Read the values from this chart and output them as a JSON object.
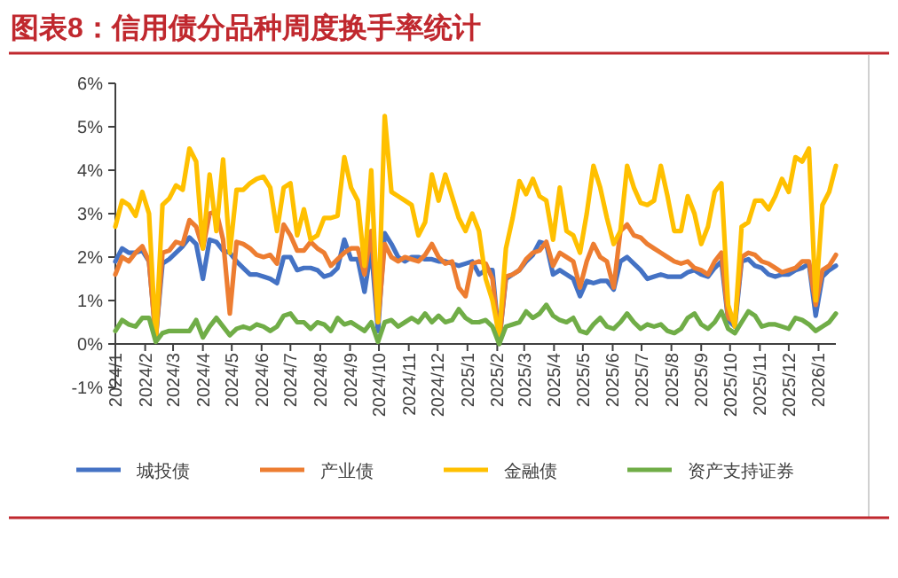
{
  "chart_data": {
    "type": "line",
    "title": "图表8：信用债分品种周度换手率统计",
    "x": [
      "2024-01-01",
      "2024-01-08",
      "2024-01-15",
      "2024-01-22",
      "2024-01-29",
      "2024-02-05",
      "2024-02-12",
      "2024-02-19",
      "2024-02-26",
      "2024-03-04",
      "2024-03-11",
      "2024-03-18",
      "2024-03-25",
      "2024-04-01",
      "2024-04-08",
      "2024-04-15",
      "2024-04-22",
      "2024-04-29",
      "2024-05-06",
      "2024-05-13",
      "2024-05-20",
      "2024-05-27",
      "2024-06-03",
      "2024-06-10",
      "2024-06-17",
      "2024-06-24",
      "2024-07-01",
      "2024-07-08",
      "2024-07-15",
      "2024-07-22",
      "2024-07-29",
      "2024-08-05",
      "2024-08-12",
      "2024-08-19",
      "2024-08-26",
      "2024-09-02",
      "2024-09-09",
      "2024-09-16",
      "2024-09-23",
      "2024-09-30",
      "2024-10-07",
      "2024-10-14",
      "2024-10-21",
      "2024-10-28",
      "2024-11-04",
      "2024-11-11",
      "2024-11-18",
      "2024-11-25",
      "2024-12-02",
      "2024-12-09",
      "2024-12-16",
      "2024-12-23",
      "2024-12-30",
      "2025-01-06",
      "2025-01-13",
      "2025-01-20",
      "2025-01-27",
      "2025-02-03",
      "2025-02-10",
      "2025-02-17",
      "2025-02-24",
      "2025-03-03",
      "2025-03-10",
      "2025-03-17",
      "2025-03-24",
      "2025-03-31",
      "2025-04-07",
      "2025-04-14",
      "2025-04-21",
      "2025-04-28",
      "2025-05-05",
      "2025-05-12",
      "2025-05-19",
      "2025-05-26",
      "2025-06-02",
      "2025-06-09",
      "2025-06-16",
      "2025-06-23",
      "2025-06-30",
      "2025-07-07",
      "2025-07-14",
      "2025-07-21",
      "2025-07-28",
      "2025-08-04",
      "2025-08-11",
      "2025-08-18",
      "2025-08-25",
      "2025-09-01",
      "2025-09-08",
      "2025-09-15",
      "2025-09-22",
      "2025-09-29",
      "2025-10-06",
      "2025-10-13",
      "2025-10-20",
      "2025-10-27",
      "2025-11-03",
      "2025-11-10",
      "2025-11-17",
      "2025-11-24",
      "2025-12-01",
      "2025-12-08",
      "2025-12-15",
      "2025-12-22",
      "2025-12-29",
      "2026-01-05",
      "2026-01-12",
      "2026-01-19"
    ],
    "xlim": [
      "2024-01-01",
      "2026-01-19"
    ],
    "xticks": [
      {
        "value": "2024-01-01",
        "label": "2024/1"
      },
      {
        "value": "2024-02-01",
        "label": "2024/2"
      },
      {
        "value": "2024-03-01",
        "label": "2024/3"
      },
      {
        "value": "2024-04-01",
        "label": "2024/4"
      },
      {
        "value": "2024-05-01",
        "label": "2024/5"
      },
      {
        "value": "2024-06-01",
        "label": "2024/6"
      },
      {
        "value": "2024-07-01",
        "label": "2024/7"
      },
      {
        "value": "2024-08-01",
        "label": "2024/8"
      },
      {
        "value": "2024-09-01",
        "label": "2024/9"
      },
      {
        "value": "2024-10-01",
        "label": "2024/10"
      },
      {
        "value": "2024-11-01",
        "label": "2024/11"
      },
      {
        "value": "2024-12-01",
        "label": "2024/12"
      },
      {
        "value": "2025-01-01",
        "label": "2025/1"
      },
      {
        "value": "2025-02-01",
        "label": "2025/2"
      },
      {
        "value": "2025-03-01",
        "label": "2025/3"
      },
      {
        "value": "2025-04-01",
        "label": "2025/4"
      },
      {
        "value": "2025-05-01",
        "label": "2025/5"
      },
      {
        "value": "2025-06-01",
        "label": "2025/6"
      },
      {
        "value": "2025-07-01",
        "label": "2025/7"
      },
      {
        "value": "2025-08-01",
        "label": "2025/8"
      },
      {
        "value": "2025-09-01",
        "label": "2025/9"
      },
      {
        "value": "2025-10-01",
        "label": "2025/10"
      },
      {
        "value": "2025-11-01",
        "label": "2025/11"
      },
      {
        "value": "2025-12-01",
        "label": "2025/12"
      },
      {
        "value": "2026-01-01",
        "label": "2026/1"
      }
    ],
    "ylim": [
      -1,
      6
    ],
    "yticks": [
      {
        "value": -1,
        "label": "-1%"
      },
      {
        "value": 0,
        "label": "0%"
      },
      {
        "value": 1,
        "label": "1%"
      },
      {
        "value": 2,
        "label": "2%"
      },
      {
        "value": 3,
        "label": "3%"
      },
      {
        "value": 4,
        "label": "4%"
      },
      {
        "value": 5,
        "label": "5%"
      },
      {
        "value": 6,
        "label": "6%"
      }
    ],
    "legend": "bottom",
    "series": [
      {
        "name": "城投债",
        "color": "#4472c4",
        "values": [
          1.9,
          2.2,
          2.1,
          2.1,
          2.15,
          1.9,
          0.15,
          1.85,
          1.95,
          2.1,
          2.25,
          2.45,
          2.3,
          1.5,
          2.4,
          2.35,
          2.15,
          2.1,
          1.9,
          1.75,
          1.6,
          1.6,
          1.55,
          1.5,
          1.4,
          2.0,
          2.0,
          1.7,
          1.75,
          1.75,
          1.7,
          1.55,
          1.6,
          1.75,
          2.4,
          1.95,
          1.95,
          1.2,
          2.2,
          0.3,
          2.55,
          2.3,
          2.0,
          1.9,
          2.0,
          2.0,
          1.95,
          1.95,
          1.9,
          1.9,
          1.85,
          1.8,
          1.85,
          1.9,
          1.6,
          1.7,
          1.7,
          0.05,
          1.5,
          1.6,
          1.7,
          1.9,
          2.05,
          2.35,
          2.3,
          1.6,
          1.7,
          1.6,
          1.5,
          1.1,
          1.45,
          1.4,
          1.45,
          1.45,
          1.25,
          1.9,
          2.0,
          1.85,
          1.7,
          1.5,
          1.55,
          1.6,
          1.55,
          1.55,
          1.55,
          1.65,
          1.7,
          1.6,
          1.55,
          1.75,
          1.9,
          0.55,
          0.4,
          1.9,
          1.95,
          1.8,
          1.75,
          1.6,
          1.55,
          1.6,
          1.6,
          1.7,
          1.75,
          1.85,
          0.65,
          1.55,
          1.7,
          1.8
        ]
      },
      {
        "name": "产业债",
        "color": "#ed7d31",
        "values": [
          1.6,
          2.0,
          1.9,
          2.1,
          2.25,
          1.9,
          0.1,
          2.1,
          2.15,
          2.35,
          2.3,
          2.85,
          2.7,
          2.2,
          3.0,
          3.05,
          2.4,
          0.7,
          2.35,
          2.3,
          2.2,
          2.05,
          2.0,
          2.05,
          1.85,
          2.75,
          2.5,
          2.15,
          2.15,
          2.35,
          2.2,
          2.1,
          1.8,
          1.95,
          2.1,
          2.2,
          2.2,
          1.6,
          2.6,
          0.5,
          2.3,
          2.0,
          1.9,
          2.0,
          1.95,
          1.9,
          2.05,
          2.3,
          2.0,
          1.85,
          1.9,
          1.3,
          1.1,
          1.85,
          1.9,
          1.85,
          1.5,
          0.05,
          1.55,
          1.6,
          1.7,
          1.95,
          2.1,
          2.15,
          2.35,
          1.8,
          2.1,
          2.0,
          1.9,
          1.3,
          1.9,
          2.3,
          2.0,
          1.9,
          1.3,
          2.6,
          2.75,
          2.5,
          2.45,
          2.3,
          2.2,
          2.1,
          2.0,
          1.9,
          1.85,
          1.9,
          1.75,
          1.7,
          1.6,
          1.9,
          2.1,
          0.6,
          0.5,
          2.0,
          2.1,
          2.05,
          1.9,
          1.85,
          1.75,
          1.65,
          1.7,
          1.75,
          1.9,
          1.9,
          0.9,
          1.7,
          1.8,
          2.05
        ]
      },
      {
        "name": "金融债",
        "color": "#ffc000",
        "values": [
          2.7,
          3.3,
          3.2,
          2.95,
          3.5,
          3.0,
          0.1,
          3.2,
          3.35,
          3.65,
          3.55,
          4.5,
          4.2,
          2.2,
          3.9,
          2.6,
          4.25,
          2.1,
          3.55,
          3.55,
          3.7,
          3.8,
          3.85,
          3.6,
          2.6,
          3.6,
          3.7,
          2.5,
          3.1,
          2.4,
          2.5,
          2.9,
          2.9,
          2.95,
          4.3,
          3.6,
          3.3,
          1.8,
          4.0,
          0.5,
          5.25,
          3.5,
          3.4,
          3.3,
          3.2,
          2.5,
          2.8,
          3.9,
          3.3,
          3.9,
          3.4,
          2.9,
          2.6,
          3.0,
          2.6,
          1.5,
          1.0,
          0.2,
          2.2,
          2.9,
          3.75,
          3.45,
          3.8,
          3.4,
          3.3,
          2.4,
          3.6,
          2.6,
          2.5,
          2.1,
          3.0,
          4.1,
          3.6,
          2.9,
          2.3,
          2.6,
          4.1,
          3.6,
          3.25,
          3.2,
          3.3,
          4.1,
          3.4,
          2.6,
          2.6,
          3.4,
          3.0,
          2.3,
          2.7,
          3.5,
          3.7,
          0.9,
          0.4,
          2.7,
          2.8,
          3.3,
          3.3,
          3.1,
          3.4,
          3.8,
          3.5,
          4.3,
          4.2,
          4.5,
          1.0,
          3.2,
          3.5,
          4.1
        ]
      },
      {
        "name": "资产支持证券",
        "color": "#70ad47",
        "values": [
          0.3,
          0.55,
          0.45,
          0.4,
          0.6,
          0.6,
          0.05,
          0.25,
          0.3,
          0.3,
          0.3,
          0.3,
          0.55,
          0.15,
          0.4,
          0.6,
          0.4,
          0.2,
          0.35,
          0.4,
          0.35,
          0.45,
          0.4,
          0.3,
          0.4,
          0.65,
          0.7,
          0.5,
          0.5,
          0.35,
          0.5,
          0.45,
          0.3,
          0.6,
          0.45,
          0.5,
          0.4,
          0.3,
          0.5,
          0.05,
          0.5,
          0.55,
          0.4,
          0.5,
          0.6,
          0.5,
          0.7,
          0.5,
          0.65,
          0.5,
          0.55,
          0.8,
          0.6,
          0.5,
          0.5,
          0.55,
          0.4,
          0.0,
          0.4,
          0.45,
          0.5,
          0.75,
          0.6,
          0.7,
          0.9,
          0.65,
          0.55,
          0.5,
          0.6,
          0.3,
          0.25,
          0.45,
          0.6,
          0.4,
          0.35,
          0.5,
          0.7,
          0.5,
          0.35,
          0.45,
          0.4,
          0.45,
          0.3,
          0.25,
          0.35,
          0.6,
          0.7,
          0.45,
          0.35,
          0.5,
          0.75,
          0.35,
          0.25,
          0.5,
          0.75,
          0.65,
          0.4,
          0.45,
          0.45,
          0.4,
          0.35,
          0.6,
          0.55,
          0.45,
          0.3,
          0.4,
          0.5,
          0.7
        ]
      }
    ]
  }
}
